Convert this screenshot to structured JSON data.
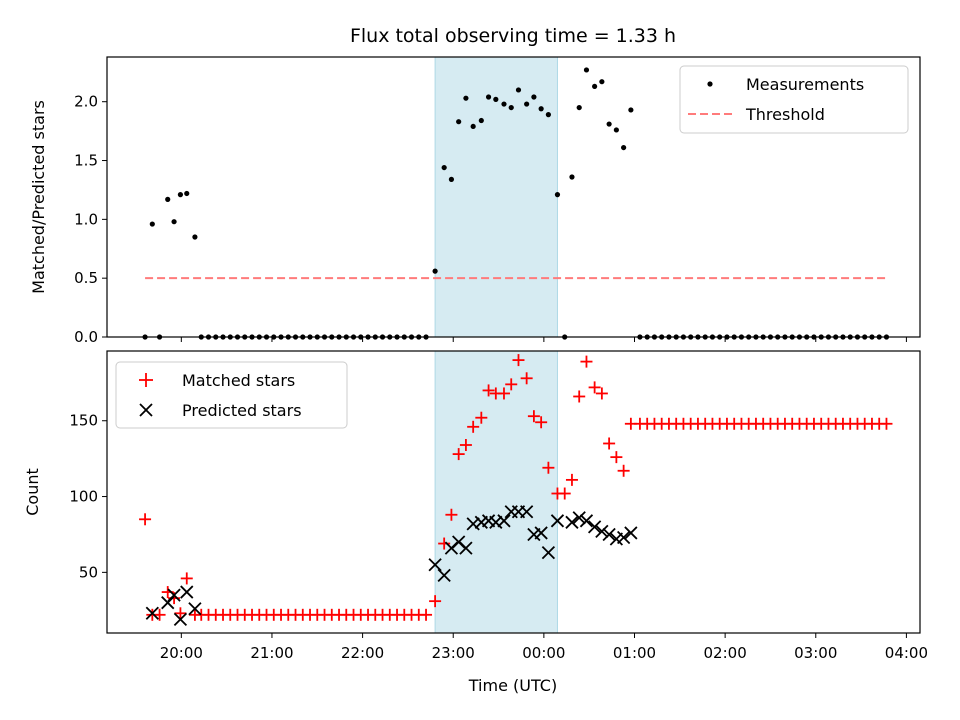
{
  "chart_data": {
    "title": "Flux total observing time = 1.33 h",
    "xlabel": "Time (UTC)",
    "x_unit": "hours since 19:00 UTC",
    "x_ticks": [
      {
        "value": 1,
        "label": "20:00"
      },
      {
        "value": 2,
        "label": "21:00"
      },
      {
        "value": 3,
        "label": "22:00"
      },
      {
        "value": 4,
        "label": "23:00"
      },
      {
        "value": 5,
        "label": "00:00"
      },
      {
        "value": 6,
        "label": "01:00"
      },
      {
        "value": 7,
        "label": "02:00"
      },
      {
        "value": 8,
        "label": "03:00"
      },
      {
        "value": 9,
        "label": "04:00"
      }
    ],
    "xlim": [
      0.18,
      9.15
    ],
    "highlight_span": {
      "x0": 3.8,
      "x1": 5.15,
      "color": "#add8e6"
    },
    "top": {
      "type": "scatter",
      "ylabel": "Matched/Predicted stars",
      "ylim": [
        0,
        2.38
      ],
      "y_ticks": [
        0.0,
        0.5,
        1.0,
        1.5,
        2.0
      ],
      "y_tick_labels": [
        "0.0",
        "0.5",
        "1.0",
        "1.5",
        "2.0"
      ],
      "legend": {
        "placement": "top-right",
        "entries": [
          "Measurements",
          "Threshold"
        ]
      },
      "series": [
        {
          "name": "Measurements",
          "color": "#000000",
          "x": [
            0.6,
            0.68,
            0.76,
            0.85,
            0.92,
            0.99,
            1.06,
            1.15,
            1.22,
            1.3,
            1.38,
            1.46,
            1.54,
            1.62,
            1.7,
            1.78,
            1.86,
            1.94,
            2.02,
            2.1,
            2.18,
            2.26,
            2.34,
            2.42,
            2.5,
            2.58,
            2.66,
            2.74,
            2.82,
            2.9,
            2.98,
            3.06,
            3.14,
            3.22,
            3.3,
            3.38,
            3.46,
            3.54,
            3.62,
            3.7,
            3.8,
            3.9,
            3.98,
            4.06,
            4.14,
            4.22,
            4.31,
            4.39,
            4.47,
            4.56,
            4.64,
            4.72,
            4.81,
            4.89,
            4.97,
            5.05,
            5.15,
            5.23,
            5.31,
            5.39,
            5.47,
            5.56,
            5.64,
            5.72,
            5.8,
            5.88,
            5.96,
            6.06,
            6.14,
            6.22,
            6.3,
            6.38,
            6.46,
            6.54,
            6.62,
            6.7,
            6.78,
            6.86,
            6.94,
            7.02,
            7.1,
            7.18,
            7.26,
            7.34,
            7.42,
            7.5,
            7.58,
            7.66,
            7.74,
            7.82,
            7.9,
            7.98,
            8.06,
            8.14,
            8.22,
            8.3,
            8.38,
            8.46,
            8.54,
            8.62,
            8.7,
            8.78
          ],
          "y": [
            0,
            0.96,
            0,
            1.17,
            0.98,
            1.21,
            1.22,
            0.85,
            0,
            0,
            0,
            0,
            0,
            0,
            0,
            0,
            0,
            0,
            0,
            0,
            0,
            0,
            0,
            0,
            0,
            0,
            0,
            0,
            0,
            0,
            0,
            0,
            0,
            0,
            0,
            0,
            0,
            0,
            0,
            0,
            0.56,
            1.44,
            1.34,
            1.83,
            2.03,
            1.79,
            1.84,
            2.04,
            2.02,
            1.98,
            1.95,
            2.1,
            1.98,
            2.04,
            1.94,
            1.89,
            1.21,
            0,
            1.36,
            1.95,
            2.27,
            2.13,
            2.17,
            1.81,
            1.76,
            1.61,
            1.93,
            0,
            0,
            0,
            0,
            0,
            0,
            0,
            0,
            0,
            0,
            0,
            0,
            0,
            0,
            0,
            0,
            0,
            0,
            0,
            0,
            0,
            0,
            0,
            0,
            0,
            0,
            0,
            0,
            0,
            0,
            0,
            0,
            0,
            0,
            0
          ]
        },
        {
          "name": "Threshold",
          "type": "line",
          "color": "#ff7b7b",
          "x": [
            0.6,
            8.78
          ],
          "y": [
            0.5,
            0.5
          ]
        }
      ]
    },
    "bottom": {
      "type": "scatter",
      "ylabel": "Count",
      "ylim": [
        10,
        196
      ],
      "y_ticks": [
        50,
        100,
        150
      ],
      "y_tick_labels": [
        "50",
        "100",
        "150"
      ],
      "legend": {
        "placement": "top-left",
        "entries": [
          "Matched stars",
          "Predicted stars"
        ]
      },
      "series": [
        {
          "name": "Matched stars",
          "marker": "+",
          "color": "#ff0000",
          "x": [
            0.6,
            0.68,
            0.76,
            0.85,
            0.92,
            0.99,
            1.06,
            1.15,
            1.22,
            1.3,
            1.38,
            1.46,
            1.54,
            1.62,
            1.7,
            1.78,
            1.86,
            1.94,
            2.02,
            2.1,
            2.18,
            2.26,
            2.34,
            2.42,
            2.5,
            2.58,
            2.66,
            2.74,
            2.82,
            2.9,
            2.98,
            3.06,
            3.14,
            3.22,
            3.3,
            3.38,
            3.46,
            3.54,
            3.62,
            3.7,
            3.8,
            3.9,
            3.98,
            4.06,
            4.14,
            4.22,
            4.31,
            4.39,
            4.47,
            4.56,
            4.64,
            4.72,
            4.81,
            4.89,
            4.97,
            5.05,
            5.15,
            5.23,
            5.31,
            5.39,
            5.47,
            5.56,
            5.64,
            5.72,
            5.8,
            5.88,
            5.96,
            6.06,
            6.14,
            6.22,
            6.3,
            6.38,
            6.46,
            6.54,
            6.62,
            6.7,
            6.78,
            6.86,
            6.94,
            7.02,
            7.1,
            7.18,
            7.26,
            7.34,
            7.42,
            7.5,
            7.58,
            7.66,
            7.74,
            7.82,
            7.9,
            7.98,
            8.06,
            8.14,
            8.22,
            8.3,
            8.38,
            8.46,
            8.54,
            8.62,
            8.7,
            8.78
          ],
          "y": [
            85,
            22,
            22,
            37,
            33,
            23,
            46,
            22,
            22,
            22,
            22,
            22,
            22,
            22,
            22,
            22,
            22,
            22,
            22,
            22,
            22,
            22,
            22,
            22,
            22,
            22,
            22,
            22,
            22,
            22,
            22,
            22,
            22,
            22,
            22,
            22,
            22,
            22,
            22,
            22,
            31,
            69,
            88,
            128,
            134,
            146,
            152,
            170,
            168,
            168,
            174,
            190,
            178,
            153,
            149,
            119,
            102,
            102,
            111,
            166,
            189,
            172,
            168,
            135,
            126,
            117,
            148,
            148,
            148,
            148,
            148,
            148,
            148,
            148,
            148,
            148,
            148,
            148,
            148,
            148,
            148,
            148,
            148,
            148,
            148,
            148,
            148,
            148,
            148,
            148,
            148,
            148,
            148,
            148,
            148,
            148,
            148,
            148,
            148,
            148,
            148,
            148
          ]
        },
        {
          "name": "Predicted stars",
          "marker": "x",
          "color": "#000000",
          "x": [
            0.68,
            0.85,
            0.92,
            0.99,
            1.06,
            1.15,
            3.8,
            3.9,
            3.98,
            4.06,
            4.14,
            4.22,
            4.31,
            4.39,
            4.47,
            4.56,
            4.64,
            4.72,
            4.81,
            4.89,
            4.97,
            5.05,
            5.15,
            5.31,
            5.39,
            5.47,
            5.56,
            5.64,
            5.72,
            5.8,
            5.88,
            5.96
          ],
          "y": [
            23,
            30,
            35,
            19,
            37,
            26,
            55,
            48,
            66,
            70,
            66,
            82,
            83,
            84,
            83,
            84,
            90,
            90,
            90,
            75,
            76,
            63,
            84,
            83,
            86,
            84,
            80,
            77,
            75,
            72,
            73,
            76
          ]
        }
      ]
    }
  }
}
